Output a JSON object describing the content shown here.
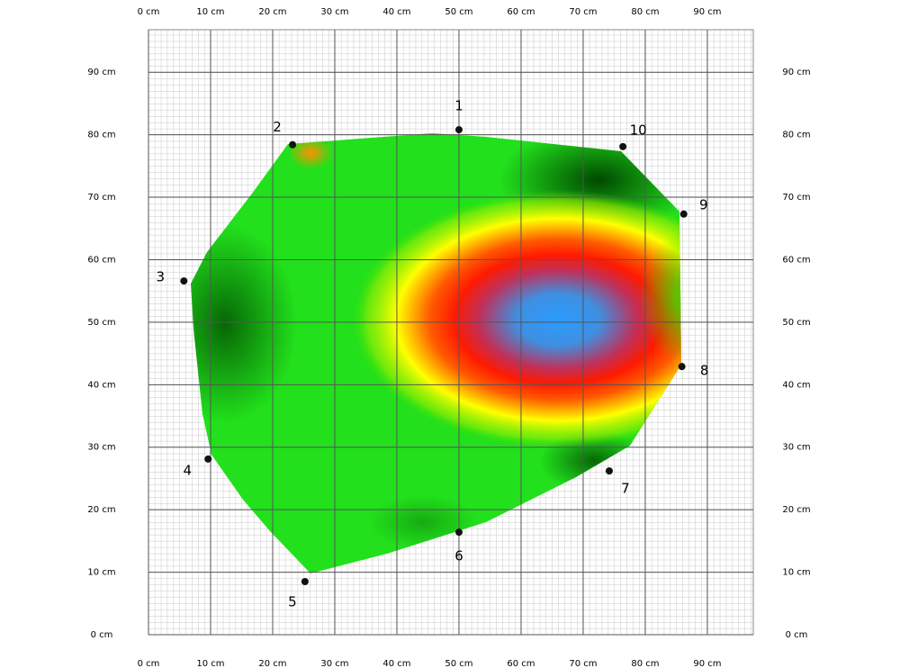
{
  "chart_data": {
    "type": "scatter",
    "xlim": [
      0,
      97.4
    ],
    "ylim": [
      0,
      96.8
    ],
    "xticks": [
      {
        "value": 0,
        "label": "0 cm"
      },
      {
        "value": 10,
        "label": "10 cm"
      },
      {
        "value": 20,
        "label": "20 cm"
      },
      {
        "value": 30,
        "label": "30 cm"
      },
      {
        "value": 40,
        "label": "40 cm"
      },
      {
        "value": 50,
        "label": "50 cm"
      },
      {
        "value": 60,
        "label": "60 cm"
      },
      {
        "value": 70,
        "label": "70 cm"
      },
      {
        "value": 80,
        "label": "80 cm"
      },
      {
        "value": 90,
        "label": "90 cm"
      }
    ],
    "yticks": [
      {
        "value": 0,
        "label": "0 cm"
      },
      {
        "value": 10,
        "label": "10 cm"
      },
      {
        "value": 20,
        "label": "20 cm"
      },
      {
        "value": 30,
        "label": "30 cm"
      },
      {
        "value": 40,
        "label": "40 cm"
      },
      {
        "value": 50,
        "label": "50 cm"
      },
      {
        "value": 60,
        "label": "60 cm"
      },
      {
        "value": 70,
        "label": "70 cm"
      },
      {
        "value": 80,
        "label": "80 cm"
      },
      {
        "value": 90,
        "label": "90 cm"
      }
    ],
    "grid": true,
    "color": "#111111",
    "x": [
      50.0,
      23.2,
      5.7,
      9.6,
      25.2,
      50.0,
      74.2,
      85.9,
      86.2,
      76.4
    ],
    "values": [
      80.8,
      78.4,
      56.6,
      28.1,
      8.5,
      16.4,
      26.2,
      42.9,
      67.3,
      78.1
    ],
    "labels": [
      "1",
      "2",
      "3",
      "4",
      "5",
      "6",
      "7",
      "8",
      "9",
      "10"
    ]
  }
}
